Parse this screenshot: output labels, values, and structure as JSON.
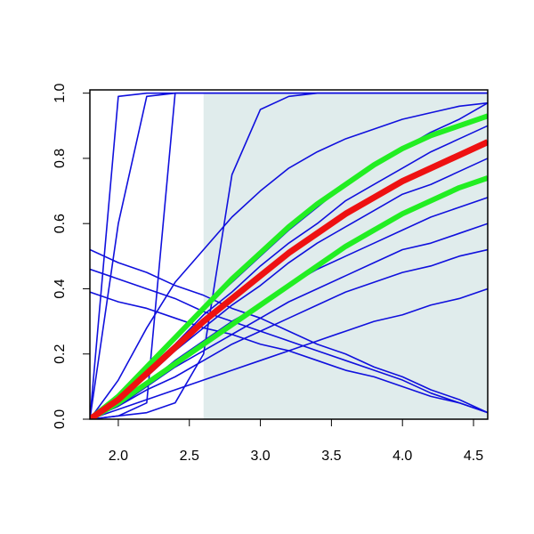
{
  "chart_data": {
    "type": "line",
    "x": [
      1.8,
      2.0,
      2.2,
      2.4,
      2.6,
      2.8,
      3.0,
      3.2,
      3.4,
      3.6,
      3.8,
      4.0,
      4.2,
      4.4,
      4.6
    ],
    "xlim": [
      1.8,
      4.6
    ],
    "ylim": [
      0,
      1.01
    ],
    "xticks": [
      {
        "value": 2.0,
        "label": "2.0"
      },
      2.5,
      {
        "value": 3.0,
        "label": "3.0"
      },
      3.5,
      {
        "value": 4.0,
        "label": "4.0"
      },
      4.5
    ],
    "yticks": [
      {
        "value": 0,
        "label": "0.0"
      },
      0.2,
      0.4,
      0.6,
      0.8,
      {
        "value": 1,
        "label": "1.0"
      }
    ],
    "shaded_region": [
      2.6,
      4.6
    ],
    "shade_color": "#e0ecec",
    "series": [
      {
        "color": "#1010dd",
        "width": 1.6,
        "values": [
          0,
          0.99,
          1,
          1,
          1,
          1,
          1,
          1,
          1,
          1,
          1,
          1,
          1,
          1,
          1
        ]
      },
      {
        "color": "#1010dd",
        "width": 1.6,
        "values": [
          0,
          0.6,
          0.99,
          1,
          1,
          1,
          1,
          1,
          1,
          1,
          1,
          1,
          1,
          1,
          1
        ]
      },
      {
        "color": "#1010dd",
        "width": 1.6,
        "values": [
          0,
          0.01,
          0.05,
          1,
          1,
          1,
          1,
          1,
          1,
          1,
          1,
          1,
          1,
          1,
          1
        ]
      },
      {
        "color": "#1010dd",
        "width": 1.6,
        "values": [
          0,
          0.01,
          0.02,
          0.05,
          0.2,
          0.75,
          0.95,
          0.99,
          1,
          1,
          1,
          1,
          1,
          1,
          1
        ]
      },
      {
        "color": "#1010dd",
        "width": 1.6,
        "values": [
          0.52,
          0.48,
          0.45,
          0.41,
          0.38,
          0.34,
          0.31,
          0.27,
          0.23,
          0.2,
          0.16,
          0.13,
          0.09,
          0.06,
          0.02
        ]
      },
      {
        "color": "#1010dd",
        "width": 1.6,
        "values": [
          0.46,
          0.43,
          0.4,
          0.37,
          0.33,
          0.3,
          0.27,
          0.24,
          0.21,
          0.18,
          0.15,
          0.12,
          0.08,
          0.05,
          0.02
        ]
      },
      {
        "color": "#1010dd",
        "width": 1.6,
        "values": [
          0.39,
          0.36,
          0.34,
          0.31,
          0.28,
          0.26,
          0.23,
          0.21,
          0.18,
          0.15,
          0.13,
          0.1,
          0.07,
          0.05,
          0.02
        ]
      },
      {
        "color": "#1010dd",
        "width": 1.6,
        "values": [
          0,
          0.12,
          0.28,
          0.42,
          0.52,
          0.62,
          0.7,
          0.77,
          0.82,
          0.86,
          0.89,
          0.92,
          0.94,
          0.96,
          0.97
        ]
      },
      {
        "color": "#1010dd",
        "width": 1.6,
        "values": [
          0,
          0.07,
          0.16,
          0.25,
          0.34,
          0.42,
          0.5,
          0.58,
          0.65,
          0.72,
          0.78,
          0.83,
          0.88,
          0.92,
          0.97
        ]
      },
      {
        "color": "#1010dd",
        "width": 1.6,
        "values": [
          0,
          0.06,
          0.15,
          0.23,
          0.32,
          0.39,
          0.47,
          0.54,
          0.6,
          0.67,
          0.72,
          0.77,
          0.82,
          0.86,
          0.9
        ]
      },
      {
        "color": "#1010dd",
        "width": 1.6,
        "values": [
          0,
          0.06,
          0.13,
          0.21,
          0.28,
          0.35,
          0.41,
          0.48,
          0.54,
          0.59,
          0.64,
          0.69,
          0.72,
          0.76,
          0.8
        ]
      },
      {
        "color": "#1010dd",
        "width": 1.6,
        "values": [
          0,
          0.05,
          0.11,
          0.18,
          0.24,
          0.3,
          0.35,
          0.41,
          0.46,
          0.5,
          0.54,
          0.58,
          0.62,
          0.65,
          0.68
        ]
      },
      {
        "color": "#1010dd",
        "width": 1.6,
        "values": [
          0,
          0.04,
          0.1,
          0.16,
          0.21,
          0.26,
          0.31,
          0.36,
          0.4,
          0.44,
          0.48,
          0.52,
          0.54,
          0.57,
          0.6
        ]
      },
      {
        "color": "#1010dd",
        "width": 1.6,
        "values": [
          0,
          0.04,
          0.09,
          0.13,
          0.18,
          0.23,
          0.27,
          0.31,
          0.35,
          0.39,
          0.42,
          0.45,
          0.47,
          0.5,
          0.52
        ]
      },
      {
        "color": "#1010dd",
        "width": 1.6,
        "values": [
          0,
          0.03,
          0.06,
          0.09,
          0.12,
          0.15,
          0.18,
          0.21,
          0.24,
          0.27,
          0.3,
          0.32,
          0.35,
          0.37,
          0.4
        ]
      },
      {
        "color": "#22ee22",
        "width": 6,
        "values": [
          0,
          0.07,
          0.16,
          0.25,
          0.34,
          0.43,
          0.51,
          0.59,
          0.66,
          0.72,
          0.78,
          0.83,
          0.87,
          0.9,
          0.93
        ]
      },
      {
        "color": "#22ee22",
        "width": 6,
        "values": [
          0,
          0.05,
          0.11,
          0.17,
          0.23,
          0.29,
          0.35,
          0.41,
          0.47,
          0.53,
          0.58,
          0.63,
          0.67,
          0.71,
          0.74
        ]
      },
      {
        "color": "#ee1111",
        "width": 7,
        "values": [
          0,
          0.06,
          0.14,
          0.22,
          0.3,
          0.37,
          0.44,
          0.51,
          0.57,
          0.63,
          0.68,
          0.73,
          0.77,
          0.81,
          0.85
        ]
      }
    ]
  }
}
